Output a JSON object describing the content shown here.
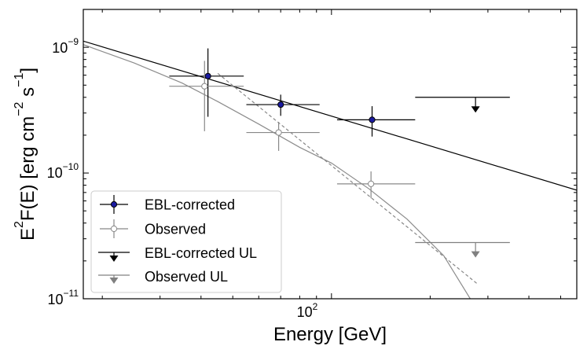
{
  "chart_data": {
    "type": "scatter",
    "title": "",
    "xlabel": "Energy [GeV]",
    "ylabel_parts": {
      "e": "E",
      "e_exp": "2",
      "fe": "F(E) [erg cm",
      "cm_exp": "−2",
      "s": " s",
      "s_exp": "−1",
      "close": "]"
    },
    "xscale": "log",
    "yscale": "log",
    "xlim": [
      17.5,
      560
    ],
    "ylim": [
      1e-11,
      2e-09
    ],
    "x_tick_label": {
      "base": "10",
      "exp": "2",
      "value": 100
    },
    "y_tick_labels": [
      {
        "base": "10",
        "exp": "−9",
        "value": 1e-09
      },
      {
        "base": "10",
        "exp": "−10",
        "value": 1e-10
      },
      {
        "base": "10",
        "exp": "−11",
        "value": 1e-11
      }
    ],
    "legend_position": "lower-left",
    "legend": [
      {
        "label": "EBL-corrected",
        "kind": "point",
        "color": "#1a1aa0",
        "stroke": "#000000"
      },
      {
        "label": "Observed",
        "kind": "point",
        "color": "#ffffff",
        "stroke": "#888888"
      },
      {
        "label": "EBL-corrected UL",
        "kind": "ul",
        "color": "#000000"
      },
      {
        "label": "Observed UL",
        "kind": "ul",
        "color": "#808080"
      }
    ],
    "series": [
      {
        "name": "EBL-corrected",
        "color": "#000000",
        "face": "#1a1aa0",
        "points": [
          {
            "x": 42,
            "y": 5.9e-10,
            "xerr": [
              32,
              54
            ],
            "yerr": [
              2.8e-10,
              9.8e-10
            ]
          },
          {
            "x": 70,
            "y": 3.5e-10,
            "xerr": [
              55,
              92
            ],
            "yerr": [
              2.85e-10,
              4.2e-10
            ]
          },
          {
            "x": 133,
            "y": 2.65e-10,
            "xerr": [
              104,
              180
            ],
            "yerr": [
              1.95e-10,
              3.4e-10
            ]
          }
        ]
      },
      {
        "name": "Observed",
        "color": "#888888",
        "face": "#ffffff",
        "points": [
          {
            "x": 41,
            "y": 4.9e-10,
            "xerr": [
              32,
              54
            ],
            "yerr": [
              2.15e-10,
              7.8e-10
            ]
          },
          {
            "x": 69,
            "y": 2.1e-10,
            "xerr": [
              55,
              92
            ],
            "yerr": [
              1.5e-10,
              2.55e-10
            ]
          },
          {
            "x": 132,
            "y": 8.2e-11,
            "xerr": [
              104,
              180
            ],
            "yerr": [
              6.3e-11,
              1.03e-10
            ]
          }
        ]
      },
      {
        "name": "EBL-corrected UL",
        "color": "#000000",
        "upper_limits": [
          {
            "x": 275,
            "y": 4e-10,
            "xerr": [
              180,
              350
            ],
            "arrow_to": 3.2e-10
          }
        ]
      },
      {
        "name": "Observed UL",
        "color": "#808080",
        "upper_limits": [
          {
            "x": 275,
            "y": 2.8e-11,
            "xerr": [
              180,
              350
            ],
            "arrow_to": 2.25e-11
          }
        ]
      }
    ],
    "lines": [
      {
        "name": "EBL-corrected power-law fit",
        "color": "#000000",
        "dash": false,
        "x": [
          17.5,
          560
        ],
        "y": [
          1.12e-09,
          7.3e-11
        ]
      },
      {
        "name": "Observed model (absorbed)",
        "color": "#8c8c8c",
        "dash": false,
        "x": [
          17.5,
          25,
          35,
          45,
          60,
          80,
          100,
          130,
          170,
          220,
          265
        ],
        "y": [
          1.05e-09,
          7.5e-10,
          5.2e-10,
          3.7e-10,
          2.45e-10,
          1.6e-10,
          1.2e-10,
          7.5e-11,
          4.3e-11,
          2.2e-11,
          1e-11
        ]
      },
      {
        "name": "Observed power-law fit",
        "color": "#888888",
        "dash": true,
        "x": [
          45,
          280
        ],
        "y": [
          6.2e-10,
          1.3e-11
        ]
      }
    ]
  }
}
